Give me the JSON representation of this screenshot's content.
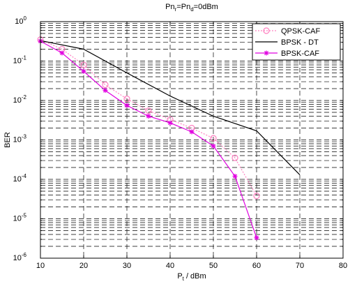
{
  "chart_data": {
    "type": "line",
    "title": {
      "main": "Pn",
      "sub1": "r",
      "mid": "=Pn",
      "sub2": "d",
      "tail": "=0dBm"
    },
    "xlabel": {
      "main": "P",
      "sub": "t",
      "tail": " / dBm"
    },
    "ylabel": "BER",
    "xlim": [
      10,
      80
    ],
    "ylim": [
      1e-06,
      1
    ],
    "yscale": "log",
    "grid": true,
    "legend_position": "top-right",
    "x_ticks": [
      "10",
      "20",
      "30",
      "40",
      "50",
      "60",
      "70",
      "80"
    ],
    "y_ticks": [
      {
        "base": "10",
        "exp": "0"
      },
      {
        "base": "10",
        "exp": "-1"
      },
      {
        "base": "10",
        "exp": "-2"
      },
      {
        "base": "10",
        "exp": "-3"
      },
      {
        "base": "10",
        "exp": "-4"
      },
      {
        "base": "10",
        "exp": "-5"
      },
      {
        "base": "10",
        "exp": "-6"
      }
    ],
    "series": [
      {
        "name": "QPSK-CAF",
        "color": "#ff80c0",
        "dash": "dotted",
        "marker": "circle",
        "x": [
          10,
          15,
          20,
          25,
          30,
          35,
          40,
          45,
          50,
          55,
          60
        ],
        "y": [
          0.35,
          0.2,
          0.08,
          0.025,
          0.011,
          0.0055,
          0.0033,
          0.002,
          0.0011,
          0.00035,
          3.8e-05
        ]
      },
      {
        "name": "BPSK - DT",
        "color": "#000000",
        "dash": "solid",
        "marker": "none",
        "x": [
          10,
          20,
          30,
          40,
          50,
          60,
          70
        ],
        "y": [
          0.33,
          0.2,
          0.05,
          0.013,
          0.004,
          0.0017,
          0.00013
        ]
      },
      {
        "name": "BPSK-CAF",
        "color": "#e000e0",
        "dash": "solid",
        "marker": "star",
        "x": [
          10,
          15,
          20,
          25,
          30,
          35,
          40,
          45,
          50,
          55,
          60
        ],
        "y": [
          0.32,
          0.16,
          0.055,
          0.018,
          0.0075,
          0.004,
          0.0027,
          0.0016,
          0.0007,
          0.00012,
          3.3e-06
        ]
      }
    ]
  }
}
